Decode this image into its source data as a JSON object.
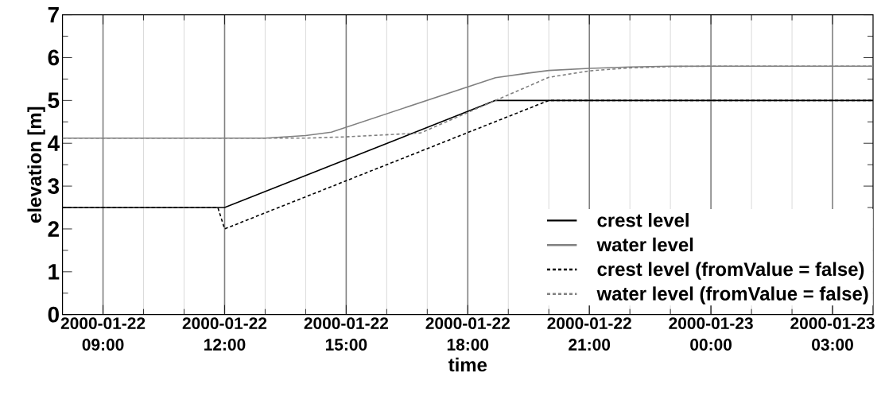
{
  "chart_data": {
    "type": "line",
    "xlabel": "time",
    "ylabel": "elevation [m]",
    "xlim": [
      "2000-01-22T08:00",
      "2000-01-23T04:00"
    ],
    "ylim": [
      0,
      7
    ],
    "xticks": [
      {
        "value": "2000-01-22T09:00",
        "label": "2000-01-22 09:00"
      },
      {
        "value": "2000-01-22T12:00",
        "label": "2000-01-22 12:00"
      },
      {
        "value": "2000-01-22T15:00",
        "label": "2000-01-22 15:00"
      },
      {
        "value": "2000-01-22T18:00",
        "label": "2000-01-22 18:00"
      },
      {
        "value": "2000-01-22T21:00",
        "label": "2000-01-22 21:00"
      },
      {
        "value": "2000-01-23T00:00",
        "label": "2000-01-23 00:00"
      },
      {
        "value": "2000-01-23T03:00",
        "label": "2000-01-23 03:00"
      }
    ],
    "yticks": [
      0,
      1,
      2,
      3,
      4,
      5,
      6,
      7
    ],
    "grid": "x",
    "legend": "bottom right",
    "series": [
      {
        "name": "crest level",
        "color": "#000000",
        "line_style": "solid",
        "x": [
          "2000-01-22T08:00",
          "2000-01-22T12:00",
          "2000-01-22T18:41",
          "2000-01-23T04:00"
        ],
        "values": [
          2.5,
          2.5,
          5.0,
          5.0
        ]
      },
      {
        "name": "water level",
        "color": "#808080",
        "line_style": "solid",
        "x": [
          "2000-01-22T08:00",
          "2000-01-22T13:00",
          "2000-01-22T14:00",
          "2000-01-22T14:38",
          "2000-01-22T18:41",
          "2000-01-22T19:30",
          "2000-01-22T20:00",
          "2000-01-22T21:00",
          "2000-01-22T22:00",
          "2000-01-22T23:00",
          "2000-01-23T04:00"
        ],
        "values": [
          4.12,
          4.12,
          4.18,
          4.26,
          5.53,
          5.64,
          5.7,
          5.75,
          5.78,
          5.8,
          5.8
        ]
      },
      {
        "name": "crest level (fromValue = false)",
        "color": "#000000",
        "line_style": "dashed",
        "x": [
          "2000-01-22T08:00",
          "2000-01-22T11:50",
          "2000-01-22T12:00",
          "2000-01-22T20:00",
          "2000-01-23T04:00"
        ],
        "values": [
          2.5,
          2.5,
          2.0,
          5.0,
          5.0
        ]
      },
      {
        "name": "water level (fromValue = false)",
        "color": "#808080",
        "line_style": "dashed",
        "x": [
          "2000-01-22T08:00",
          "2000-01-22T14:00",
          "2000-01-22T15:00",
          "2000-01-22T16:50",
          "2000-01-22T20:00",
          "2000-01-22T21:00",
          "2000-01-22T22:00",
          "2000-01-22T23:00",
          "2000-01-23T00:00",
          "2000-01-23T04:00"
        ],
        "values": [
          4.12,
          4.12,
          4.15,
          4.24,
          5.54,
          5.69,
          5.76,
          5.79,
          5.8,
          5.8
        ]
      }
    ]
  }
}
